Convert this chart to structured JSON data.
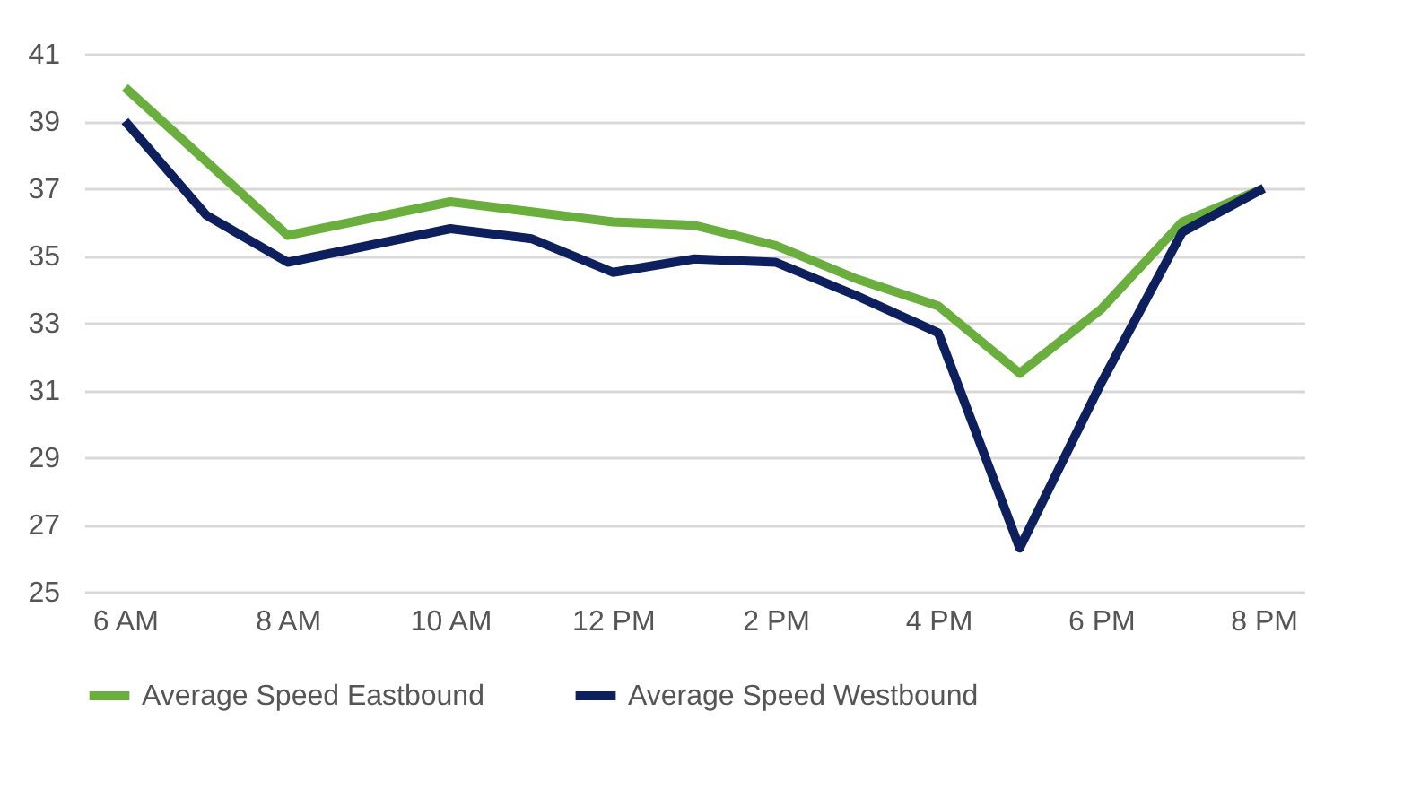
{
  "chart_data": {
    "type": "line",
    "categories": [
      "6 AM",
      null,
      "8 AM",
      null,
      "10 AM",
      null,
      "12 PM",
      null,
      "2 PM",
      null,
      "4 PM",
      null,
      "6 PM",
      null,
      "8 PM"
    ],
    "series": [
      {
        "name": "Average Speed Eastbound",
        "color": "#6aaf3d",
        "values": [
          40.0,
          37.8,
          35.6,
          36.1,
          36.6,
          36.3,
          36.0,
          35.9,
          35.3,
          34.3,
          33.5,
          31.5,
          33.4,
          36.0,
          37.0
        ]
      },
      {
        "name": "Average Speed Westbound",
        "color": "#0d1f5c",
        "values": [
          39.0,
          36.2,
          34.8,
          35.3,
          35.8,
          35.5,
          34.5,
          34.9,
          34.8,
          33.8,
          32.7,
          26.3,
          31.2,
          35.7,
          37.0
        ]
      }
    ],
    "ylim": [
      25,
      41
    ],
    "yticks": [
      25,
      27,
      29,
      31,
      33,
      35,
      37,
      39,
      41
    ],
    "grid": "y",
    "legend": "bottom",
    "marker": "none",
    "line_style": "solid"
  }
}
